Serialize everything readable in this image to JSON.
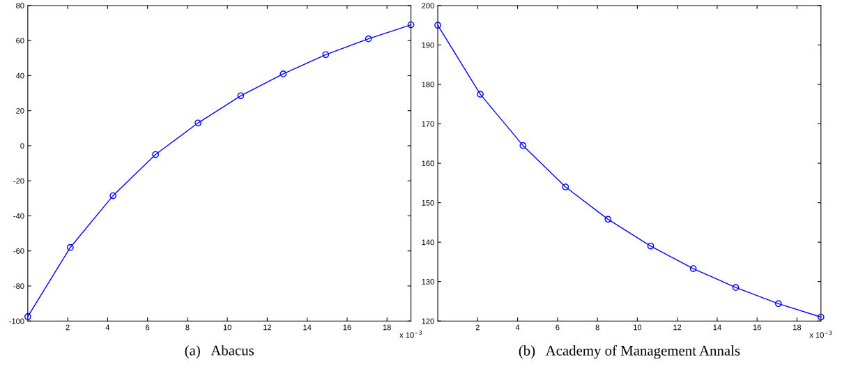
{
  "chart_data": [
    {
      "type": "line",
      "xlabel": "(a)   Abacus",
      "marker": "circle",
      "line_style": "solid",
      "grid": false,
      "legend": false,
      "x": [
        0,
        2.13,
        4.27,
        6.4,
        8.53,
        10.67,
        12.8,
        14.93,
        17.07,
        19.2
      ],
      "series": [
        {
          "color": "#0000ff",
          "values": [
            -97.5,
            -58,
            -28.5,
            -5,
            13,
            28.5,
            41,
            52,
            61,
            69
          ]
        }
      ],
      "xlim": [
        0,
        19.2
      ],
      "xticks": [
        2,
        4,
        6,
        8,
        10,
        12,
        14,
        16,
        18
      ],
      "ylim": [
        -100,
        80
      ],
      "yticks": [
        -100,
        -80,
        -60,
        -40,
        -20,
        0,
        20,
        40,
        60,
        80
      ],
      "annotations": [
        "x 10$^{−3}$"
      ]
    },
    {
      "type": "line",
      "xlabel": "(b)   Academy of Management Annals",
      "marker": "circle",
      "line_style": "solid",
      "grid": false,
      "legend": false,
      "x": [
        0,
        2.13,
        4.27,
        6.4,
        8.53,
        10.67,
        12.8,
        14.93,
        17.07,
        19.2
      ],
      "series": [
        {
          "color": "#0000ff",
          "values": [
            195,
            177.5,
            164.5,
            154,
            145.8,
            139,
            133.3,
            128.5,
            124.4,
            121
          ]
        }
      ],
      "xlim": [
        0,
        19.2
      ],
      "xticks": [
        2,
        4,
        6,
        8,
        10,
        12,
        14,
        16,
        18
      ],
      "ylim": [
        120,
        200
      ],
      "yticks": [
        120,
        130,
        140,
        150,
        160,
        170,
        180,
        190,
        200
      ],
      "annotations": [
        "x 10$^{−3}$"
      ]
    }
  ]
}
